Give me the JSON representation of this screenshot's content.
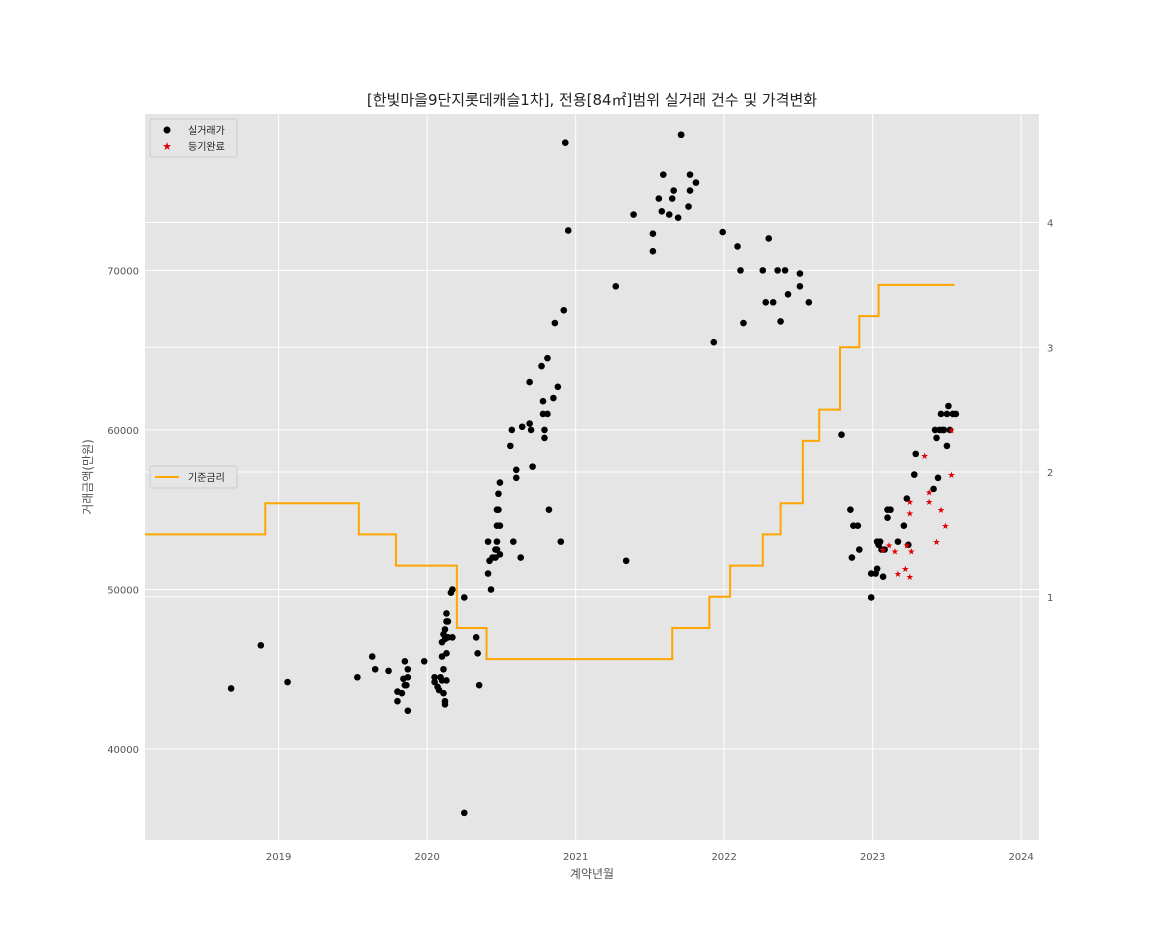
{
  "chart_data": {
    "type": "scatter",
    "title": "[한빛마을9단지롯데캐슬1차], 전용[84㎡]범위 실거래 건수 및 가격변화",
    "xlabel": "계약년월",
    "ylabel": "거래금액(만원)",
    "xlim": [
      2018.1,
      2024.12
    ],
    "ylim": [
      34300,
      79800
    ],
    "y2lim": [
      -0.95,
      4.87
    ],
    "grid": true,
    "x_ticks": [
      2019,
      2020,
      2021,
      2022,
      2023,
      2024
    ],
    "x_tick_labels": [
      "2019",
      "2020",
      "2021",
      "2022",
      "2023",
      "2024"
    ],
    "y_ticks": [
      40000,
      50000,
      60000,
      70000
    ],
    "y_tick_labels": [
      "40000",
      "50000",
      "60000",
      "70000"
    ],
    "y2_ticks": [
      1,
      2,
      3,
      4
    ],
    "y2_tick_labels": [
      "1",
      "2",
      "3",
      "4"
    ],
    "legend_main": {
      "placement": "upper-left",
      "items": [
        {
          "label": "실거래가",
          "marker": "circle",
          "color": "#000000"
        },
        {
          "label": "등기완료",
          "marker": "star",
          "color": "#e00000"
        }
      ]
    },
    "legend_rate": {
      "placement": "center-left",
      "items": [
        {
          "label": "기준금리",
          "marker": "line",
          "color": "#ffa500"
        }
      ]
    },
    "colors": {
      "transactions": "#000000",
      "registered": "#e00000",
      "base_rate": "#ffa500",
      "background": "#e5e5e5",
      "grid": "#ffffff"
    },
    "series": [
      {
        "name": "실거래가",
        "axis": "left",
        "marker": "circle",
        "color": "#000000",
        "points": [
          [
            2018.68,
            43800
          ],
          [
            2018.88,
            46500
          ],
          [
            2019.06,
            44200
          ],
          [
            2019.53,
            44500
          ],
          [
            2019.63,
            45800
          ],
          [
            2019.65,
            45000
          ],
          [
            2019.74,
            44900
          ],
          [
            2019.8,
            43600
          ],
          [
            2019.8,
            43000
          ],
          [
            2019.83,
            43500
          ],
          [
            2019.84,
            44400
          ],
          [
            2019.85,
            45500
          ],
          [
            2019.85,
            44000
          ],
          [
            2019.86,
            44000
          ],
          [
            2019.87,
            45000
          ],
          [
            2019.87,
            44500
          ],
          [
            2019.87,
            42400
          ],
          [
            2019.98,
            45500
          ],
          [
            2020.05,
            44500
          ],
          [
            2020.05,
            44200
          ],
          [
            2020.07,
            43900
          ],
          [
            2020.08,
            43700
          ],
          [
            2020.09,
            44500
          ],
          [
            2020.1,
            44300
          ],
          [
            2020.1,
            45800
          ],
          [
            2020.1,
            46700
          ],
          [
            2020.11,
            45000
          ],
          [
            2020.11,
            47200
          ],
          [
            2020.11,
            43500
          ],
          [
            2020.12,
            47500
          ],
          [
            2020.12,
            46900
          ],
          [
            2020.12,
            43000
          ],
          [
            2020.12,
            42800
          ],
          [
            2020.13,
            48000
          ],
          [
            2020.13,
            48500
          ],
          [
            2020.13,
            46000
          ],
          [
            2020.13,
            44300
          ],
          [
            2020.14,
            48000
          ],
          [
            2020.14,
            47000
          ],
          [
            2020.16,
            49800
          ],
          [
            2020.17,
            50000
          ],
          [
            2020.17,
            47000
          ],
          [
            2020.25,
            49500
          ],
          [
            2020.25,
            36000
          ],
          [
            2020.33,
            47000
          ],
          [
            2020.34,
            46000
          ],
          [
            2020.35,
            44000
          ],
          [
            2020.41,
            51000
          ],
          [
            2020.41,
            53000
          ],
          [
            2020.42,
            51800
          ],
          [
            2020.43,
            50000
          ],
          [
            2020.44,
            52000
          ],
          [
            2020.46,
            52000
          ],
          [
            2020.46,
            52500
          ],
          [
            2020.47,
            52500
          ],
          [
            2020.47,
            53000
          ],
          [
            2020.47,
            54000
          ],
          [
            2020.47,
            55000
          ],
          [
            2020.48,
            55000
          ],
          [
            2020.48,
            56000
          ],
          [
            2020.49,
            56700
          ],
          [
            2020.49,
            54000
          ],
          [
            2020.49,
            52200
          ],
          [
            2020.56,
            59000
          ],
          [
            2020.57,
            60000
          ],
          [
            2020.58,
            53000
          ],
          [
            2020.6,
            57500
          ],
          [
            2020.6,
            57000
          ],
          [
            2020.63,
            52000
          ],
          [
            2020.64,
            60200
          ],
          [
            2020.69,
            60400
          ],
          [
            2020.69,
            63000
          ],
          [
            2020.7,
            60000
          ],
          [
            2020.71,
            57700
          ],
          [
            2020.77,
            64000
          ],
          [
            2020.78,
            61000
          ],
          [
            2020.78,
            61800
          ],
          [
            2020.79,
            60000
          ],
          [
            2020.79,
            59500
          ],
          [
            2020.81,
            61000
          ],
          [
            2020.81,
            64500
          ],
          [
            2020.82,
            55000
          ],
          [
            2020.85,
            62000
          ],
          [
            2020.86,
            66700
          ],
          [
            2020.88,
            62700
          ],
          [
            2020.9,
            53000
          ],
          [
            2020.92,
            67500
          ],
          [
            2020.93,
            78000
          ],
          [
            2020.95,
            72500
          ],
          [
            2021.27,
            69000
          ],
          [
            2021.34,
            51800
          ],
          [
            2021.39,
            73500
          ],
          [
            2021.52,
            72300
          ],
          [
            2021.52,
            71200
          ],
          [
            2021.56,
            74500
          ],
          [
            2021.58,
            73700
          ],
          [
            2021.59,
            76000
          ],
          [
            2021.63,
            73500
          ],
          [
            2021.65,
            74500
          ],
          [
            2021.66,
            75000
          ],
          [
            2021.69,
            73300
          ],
          [
            2021.71,
            78500
          ],
          [
            2021.71,
            78500
          ],
          [
            2021.76,
            74000
          ],
          [
            2021.77,
            75000
          ],
          [
            2021.77,
            76000
          ],
          [
            2021.81,
            75500
          ],
          [
            2021.93,
            65500
          ],
          [
            2021.99,
            72400
          ],
          [
            2022.09,
            71500
          ],
          [
            2022.11,
            70000
          ],
          [
            2022.13,
            66700
          ],
          [
            2022.26,
            70000
          ],
          [
            2022.28,
            68000
          ],
          [
            2022.3,
            72000
          ],
          [
            2022.33,
            68000
          ],
          [
            2022.36,
            70000
          ],
          [
            2022.38,
            66800
          ],
          [
            2022.41,
            70000
          ],
          [
            2022.43,
            68500
          ],
          [
            2022.51,
            69000
          ],
          [
            2022.51,
            69800
          ],
          [
            2022.57,
            68000
          ],
          [
            2022.79,
            59700
          ],
          [
            2022.85,
            55000
          ],
          [
            2022.86,
            52000
          ],
          [
            2022.87,
            54000
          ],
          [
            2022.9,
            54000
          ],
          [
            2022.91,
            52500
          ],
          [
            2022.99,
            51000
          ],
          [
            2022.99,
            49500
          ],
          [
            2023.02,
            51000
          ],
          [
            2023.03,
            51300
          ],
          [
            2023.03,
            53000
          ],
          [
            2023.04,
            52800
          ],
          [
            2023.05,
            53000
          ],
          [
            2023.06,
            52500
          ],
          [
            2023.07,
            50800
          ],
          [
            2023.08,
            52500
          ],
          [
            2023.1,
            54500
          ],
          [
            2023.1,
            55000
          ],
          [
            2023.12,
            55000
          ],
          [
            2023.17,
            53000
          ],
          [
            2023.21,
            54000
          ],
          [
            2023.23,
            55700
          ],
          [
            2023.24,
            52800
          ],
          [
            2023.28,
            57200
          ],
          [
            2023.29,
            58500
          ],
          [
            2023.41,
            56300
          ],
          [
            2023.42,
            60000
          ],
          [
            2023.43,
            59500
          ],
          [
            2023.44,
            57000
          ],
          [
            2023.45,
            60000
          ],
          [
            2023.46,
            61000
          ],
          [
            2023.47,
            60000
          ],
          [
            2023.48,
            60000
          ],
          [
            2023.5,
            61000
          ],
          [
            2023.5,
            59000
          ],
          [
            2023.51,
            61500
          ],
          [
            2023.52,
            60000
          ],
          [
            2023.54,
            61000
          ],
          [
            2023.56,
            61000
          ]
        ]
      },
      {
        "name": "등기완료",
        "axis": "left",
        "marker": "star",
        "color": "#e00000",
        "points": [
          [
            2023.07,
            52500
          ],
          [
            2023.11,
            52800
          ],
          [
            2023.15,
            52400
          ],
          [
            2023.17,
            51000
          ],
          [
            2023.22,
            51300
          ],
          [
            2023.23,
            52800
          ],
          [
            2023.25,
            54800
          ],
          [
            2023.25,
            55500
          ],
          [
            2023.25,
            50800
          ],
          [
            2023.26,
            52400
          ],
          [
            2023.35,
            58400
          ],
          [
            2023.38,
            55500
          ],
          [
            2023.38,
            56100
          ],
          [
            2023.43,
            53000
          ],
          [
            2023.46,
            55000
          ],
          [
            2023.49,
            54000
          ],
          [
            2023.53,
            57200
          ],
          [
            2023.53,
            60000
          ]
        ]
      },
      {
        "name": "기준금리",
        "axis": "right",
        "type": "step",
        "color": "#ffa500",
        "points": [
          [
            2018.1,
            1.5
          ],
          [
            2018.91,
            1.75
          ],
          [
            2019.54,
            1.5
          ],
          [
            2019.79,
            1.25
          ],
          [
            2020.2,
            0.75
          ],
          [
            2020.4,
            0.5
          ],
          [
            2021.65,
            0.75
          ],
          [
            2021.9,
            1.0
          ],
          [
            2022.04,
            1.25
          ],
          [
            2022.26,
            1.5
          ],
          [
            2022.38,
            1.75
          ],
          [
            2022.53,
            2.25
          ],
          [
            2022.64,
            2.5
          ],
          [
            2022.78,
            3.0
          ],
          [
            2022.91,
            3.25
          ],
          [
            2023.04,
            3.5
          ],
          [
            2023.55,
            3.5
          ]
        ]
      }
    ]
  }
}
